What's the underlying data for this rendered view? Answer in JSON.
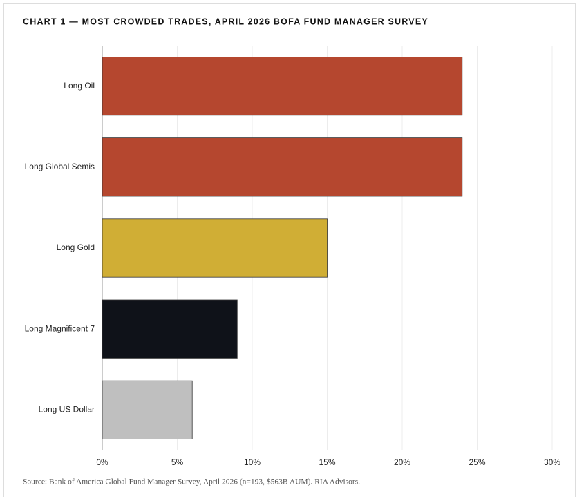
{
  "chart_data": {
    "type": "barh",
    "title": "CHART 1 — MOST CROWDED TRADES, APRIL 2026 BOFA FUND MANAGER SURVEY",
    "categories": [
      "Long Oil",
      "Long Global Semis",
      "Long Gold",
      "Long Magnificent 7",
      "Long US Dollar"
    ],
    "values": [
      24,
      24,
      15,
      9,
      6
    ],
    "colors": [
      "#b5472f",
      "#b5472f",
      "#d0ae35",
      "#0f1219",
      "#bfbfbf"
    ],
    "xlim": [
      0,
      30
    ],
    "xticks": [
      {
        "value": 0,
        "label": "0%"
      },
      {
        "value": 5,
        "label": "5%"
      },
      {
        "value": 10,
        "label": "10%"
      },
      {
        "value": 15,
        "label": "15%"
      },
      {
        "value": 20,
        "label": "20%"
      },
      {
        "value": 25,
        "label": "25%"
      },
      {
        "value": 30,
        "label": "30%"
      }
    ],
    "grid": true,
    "source": "Source: Bank of America Global Fund Manager Survey, April 2026 (n=193, $563B AUM). RIA Advisors."
  }
}
